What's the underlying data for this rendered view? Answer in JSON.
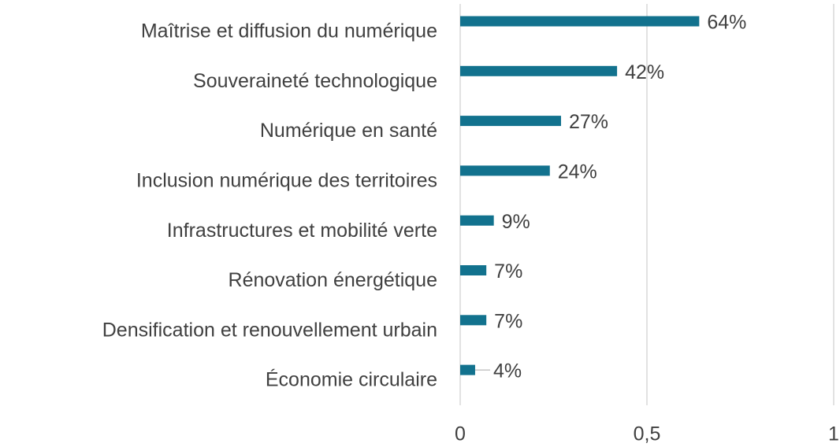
{
  "chart_data": {
    "type": "bar",
    "orientation": "horizontal",
    "categories": [
      "Maîtrise et diffusion du numérique",
      "Souveraineté technologique",
      "Numérique en santé",
      "Inclusion numérique des territoires",
      "Infrastructures et mobilité verte",
      "Rénovation énergétique",
      "Densification et renouvellement urbain",
      "Économie circulaire"
    ],
    "values": [
      0.64,
      0.42,
      0.27,
      0.24,
      0.09,
      0.07,
      0.07,
      0.04
    ],
    "value_labels": [
      "64%",
      "42%",
      "27%",
      "24%",
      "9%",
      "7%",
      "7%",
      "4%"
    ],
    "color": "#12728e",
    "xlim": [
      0,
      1
    ],
    "xticks": [
      0,
      {
        "value": 0.5,
        "label": "0,5"
      },
      1
    ],
    "grid": true
  }
}
